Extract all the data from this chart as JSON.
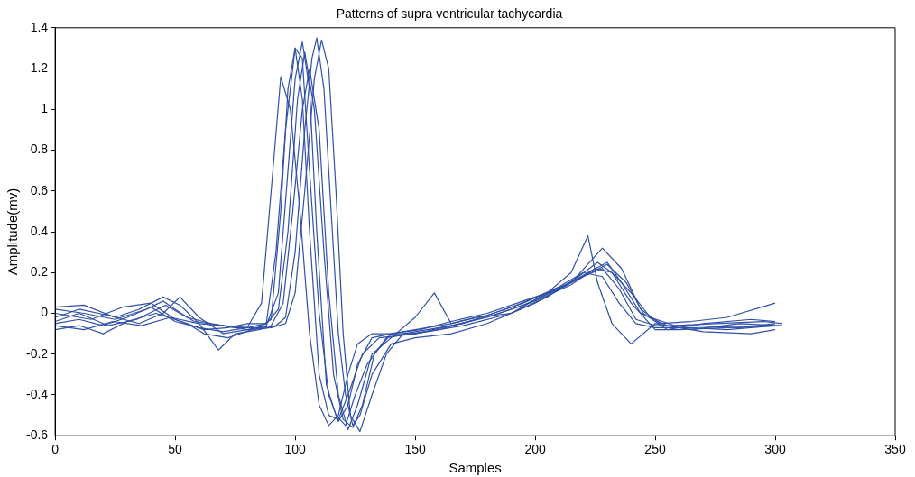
{
  "chart_data": {
    "type": "line",
    "title": "Patterns of supra ventricular tachycardia",
    "xlabel": "Samples",
    "ylabel": "Amplitude(mv)",
    "xlim": [
      0,
      350
    ],
    "xticks": [
      0,
      50,
      100,
      150,
      200,
      250,
      300,
      350
    ],
    "ylim": [
      -0.6,
      1.4
    ],
    "yticks": [
      -0.6,
      -0.4,
      -0.2,
      0,
      0.2,
      0.4,
      0.6,
      0.8,
      1,
      1.2,
      1.4
    ],
    "grid": false,
    "legend": false,
    "marker": "none",
    "line_style": "solid",
    "series": [
      {
        "color": "#3050a8",
        "x": [
          0,
          10,
          20,
          30,
          40,
          50,
          60,
          70,
          80,
          86,
          90,
          94,
          98,
          102,
          106,
          110,
          114,
          118,
          122,
          126,
          132,
          140,
          150,
          165,
          180,
          195,
          210,
          220,
          228,
          235,
          242,
          250,
          265,
          280,
          300
        ],
        "values": [
          -0.05,
          -0.03,
          -0.06,
          -0.02,
          0.03,
          -0.04,
          -0.07,
          -0.09,
          -0.07,
          0.05,
          0.6,
          1.16,
          1.0,
          0.5,
          -0.1,
          -0.45,
          -0.55,
          -0.5,
          -0.3,
          -0.15,
          -0.1,
          -0.1,
          -0.08,
          -0.05,
          -0.01,
          0.05,
          0.13,
          0.2,
          0.18,
          0.05,
          -0.05,
          -0.07,
          -0.07,
          -0.08,
          -0.06
        ]
      },
      {
        "color": "#3050a8",
        "x": [
          0,
          12,
          25,
          38,
          45,
          55,
          65,
          75,
          85,
          90,
          94,
          97,
          100,
          103,
          106,
          110,
          114,
          118,
          122,
          128,
          135,
          150,
          170,
          190,
          205,
          215,
          222,
          226,
          232,
          240,
          250,
          265,
          285,
          302
        ],
        "values": [
          0.02,
          0.0,
          -0.03,
          0.02,
          0.06,
          -0.02,
          -0.05,
          -0.07,
          -0.07,
          -0.03,
          0.5,
          1.1,
          1.3,
          1.05,
          0.4,
          -0.3,
          -0.5,
          -0.52,
          -0.4,
          -0.2,
          -0.12,
          -0.1,
          -0.06,
          0.0,
          0.1,
          0.2,
          0.38,
          0.15,
          -0.05,
          -0.15,
          -0.05,
          -0.08,
          -0.05,
          -0.06
        ]
      },
      {
        "color": "#3050a8",
        "x": [
          0,
          10,
          22,
          35,
          45,
          52,
          60,
          70,
          80,
          88,
          93,
          97,
          100,
          103,
          106,
          109,
          113,
          117,
          121,
          125,
          130,
          138,
          148,
          160,
          175,
          190,
          205,
          220,
          230,
          238,
          245,
          255,
          270,
          290,
          300
        ],
        "values": [
          -0.02,
          0.02,
          -0.01,
          -0.05,
          0.0,
          0.08,
          -0.02,
          -0.1,
          -0.08,
          -0.06,
          0.1,
          0.7,
          1.15,
          1.33,
          1.1,
          0.4,
          -0.35,
          -0.5,
          -0.55,
          -0.4,
          -0.25,
          -0.12,
          -0.1,
          -0.08,
          -0.03,
          0.03,
          0.1,
          0.18,
          0.24,
          0.15,
          0.0,
          -0.08,
          -0.05,
          -0.03,
          -0.04
        ]
      },
      {
        "color": "#3050a8",
        "x": [
          0,
          12,
          24,
          36,
          48,
          60,
          68,
          75,
          85,
          92,
          96,
          100,
          104,
          107,
          109,
          112,
          115,
          118,
          121,
          124,
          127,
          132,
          140,
          150,
          165,
          180,
          200,
          215,
          228,
          236,
          244,
          252,
          265,
          280,
          300
        ],
        "values": [
          -0.06,
          -0.08,
          -0.04,
          -0.06,
          -0.02,
          -0.05,
          -0.18,
          -0.1,
          -0.08,
          -0.06,
          -0.02,
          0.3,
          0.9,
          1.25,
          1.35,
          1.1,
          0.5,
          -0.1,
          -0.4,
          -0.55,
          -0.5,
          -0.3,
          -0.15,
          -0.12,
          -0.1,
          -0.05,
          0.05,
          0.15,
          0.32,
          0.22,
          0.02,
          -0.05,
          -0.04,
          -0.02,
          0.05
        ]
      },
      {
        "color": "#3050a8",
        "x": [
          0,
          10,
          20,
          30,
          42,
          55,
          62,
          72,
          82,
          90,
          95,
          99,
          103,
          106,
          110,
          114,
          118,
          122,
          126,
          132,
          140,
          150,
          158,
          165,
          175,
          190,
          205,
          218,
          226,
          232,
          240,
          250,
          260,
          280,
          303
        ],
        "values": [
          -0.08,
          -0.06,
          -0.1,
          -0.04,
          0.0,
          -0.05,
          -0.1,
          -0.12,
          -0.08,
          -0.06,
          0.05,
          0.5,
          1.0,
          1.2,
          0.9,
          0.1,
          -0.4,
          -0.57,
          -0.45,
          -0.2,
          -0.12,
          -0.02,
          0.1,
          -0.05,
          -0.02,
          0.0,
          0.08,
          0.18,
          0.25,
          0.2,
          0.05,
          -0.08,
          -0.08,
          -0.07,
          -0.06
        ]
      },
      {
        "color": "#3050a8",
        "x": [
          0,
          15,
          28,
          40,
          50,
          62,
          72,
          80,
          88,
          93,
          97,
          101,
          104,
          108,
          112,
          116,
          120,
          124,
          128,
          133,
          140,
          150,
          165,
          180,
          195,
          210,
          222,
          230,
          236,
          244,
          255,
          270,
          290,
          300
        ],
        "values": [
          0.0,
          -0.03,
          0.03,
          0.05,
          -0.03,
          -0.08,
          -0.07,
          -0.05,
          -0.05,
          0.02,
          0.4,
          1.05,
          1.28,
          1.0,
          0.3,
          -0.3,
          -0.52,
          -0.56,
          -0.45,
          -0.2,
          -0.1,
          -0.1,
          -0.06,
          -0.02,
          0.04,
          0.12,
          0.2,
          0.25,
          0.15,
          0.0,
          -0.06,
          -0.09,
          -0.1,
          -0.08
        ]
      },
      {
        "color": "#3050a8",
        "x": [
          0,
          10,
          22,
          34,
          46,
          58,
          70,
          80,
          90,
          96,
          100,
          104,
          108,
          111,
          114,
          117,
          120,
          123,
          127,
          132,
          138,
          145,
          155,
          170,
          185,
          200,
          215,
          225,
          232,
          240,
          248,
          258,
          275,
          295,
          303
        ],
        "values": [
          -0.04,
          0.0,
          -0.06,
          -0.03,
          0.04,
          -0.04,
          -0.06,
          -0.08,
          -0.07,
          -0.05,
          0.1,
          0.6,
          1.15,
          1.34,
          1.2,
          0.6,
          -0.1,
          -0.5,
          -0.58,
          -0.4,
          -0.2,
          -0.1,
          -0.08,
          -0.05,
          0.0,
          0.06,
          0.14,
          0.22,
          0.2,
          0.1,
          -0.02,
          -0.06,
          -0.05,
          -0.04,
          -0.05
        ]
      },
      {
        "color": "#3050a8",
        "x": [
          0,
          12,
          25,
          35,
          45,
          52,
          60,
          70,
          80,
          88,
          92,
          96,
          100,
          103,
          106,
          110,
          114,
          118,
          122,
          126,
          132,
          140,
          152,
          165,
          180,
          195,
          210,
          220,
          228,
          235,
          242,
          250,
          265,
          285,
          300
        ],
        "values": [
          0.03,
          0.04,
          -0.02,
          0.02,
          0.08,
          0.04,
          -0.05,
          -0.06,
          -0.07,
          -0.05,
          0.3,
          0.9,
          1.3,
          1.25,
          0.7,
          0.0,
          -0.4,
          -0.53,
          -0.45,
          -0.25,
          -0.12,
          -0.1,
          -0.08,
          -0.04,
          0.0,
          0.06,
          0.12,
          0.18,
          0.22,
          0.12,
          -0.03,
          -0.06,
          -0.06,
          -0.07,
          -0.05
        ]
      }
    ]
  }
}
